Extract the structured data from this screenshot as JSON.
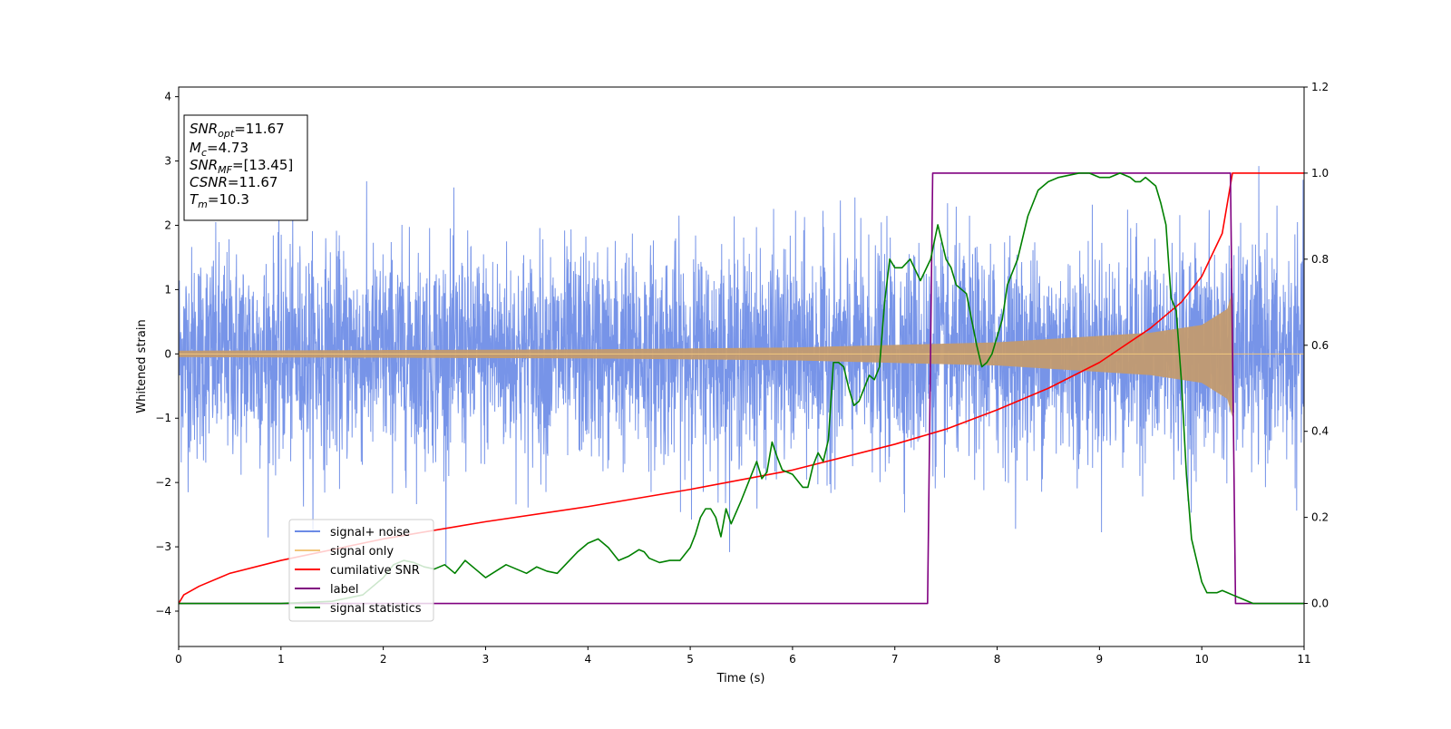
{
  "chart_data": {
    "type": "line",
    "xlabel": "Time (s)",
    "ylabel": "Whitened strain",
    "xlim": [
      0,
      11
    ],
    "ylim": [
      -4.55,
      4.15
    ],
    "y2lim": [
      -0.1,
      1.2
    ],
    "xticks": [
      "0",
      "1",
      "2",
      "3",
      "4",
      "5",
      "6",
      "7",
      "8",
      "9",
      "10",
      "11"
    ],
    "yticks": [
      "−4",
      "−3",
      "−2",
      "−1",
      "0",
      "1",
      "2",
      "3",
      "4"
    ],
    "y2ticks": [
      "0.0",
      "0.2",
      "0.4",
      "0.6",
      "0.8",
      "1.0",
      "1.2"
    ],
    "grid": false,
    "legend_position": "lower-left",
    "annotation": {
      "lines": [
        {
          "sym": "SNR",
          "sub": "opt",
          "val": "=11.67"
        },
        {
          "sym": "M",
          "sub": "c",
          "val": "=4.73"
        },
        {
          "sym": "SNR",
          "sub": "MF",
          "val": "=[13.45]"
        },
        {
          "sym": "CSNR",
          "sub": "",
          "val": "=11.67"
        },
        {
          "sym": "T",
          "sub": "m",
          "val": "=10.3"
        }
      ]
    },
    "series": [
      {
        "name": "signal+ noise",
        "color": "#6b8be6",
        "axis": "left",
        "kind": "noise",
        "description_params": {
          "t_end": 11,
          "core_amp": 1.6,
          "peak_min": 3.3,
          "peak_max": 3.77
        }
      },
      {
        "name": "signal only",
        "color": "#f2c77e",
        "axis": "left",
        "kind": "chirp",
        "amplitude_points": [
          [
            0,
            0.05
          ],
          [
            4,
            0.07
          ],
          [
            6,
            0.1
          ],
          [
            8,
            0.18
          ],
          [
            9.5,
            0.33
          ],
          [
            10.0,
            0.45
          ],
          [
            10.25,
            0.7
          ],
          [
            10.3,
            1.0
          ],
          [
            10.31,
            0.0
          ],
          [
            11,
            0.0
          ]
        ]
      },
      {
        "name": "cumilative SNR",
        "color": "#ff0000",
        "axis": "right",
        "x": [
          0,
          0.05,
          0.2,
          0.5,
          1.0,
          2.0,
          3.0,
          4.0,
          5.0,
          6.0,
          7.0,
          7.5,
          8.0,
          8.5,
          9.0,
          9.5,
          9.8,
          10.0,
          10.2,
          10.3,
          11.0
        ],
        "values": [
          0.0,
          0.02,
          0.04,
          0.07,
          0.1,
          0.15,
          0.19,
          0.225,
          0.265,
          0.31,
          0.37,
          0.405,
          0.45,
          0.5,
          0.56,
          0.64,
          0.7,
          0.76,
          0.86,
          1.0,
          1.0
        ]
      },
      {
        "name": "label",
        "color": "#800080",
        "axis": "right",
        "x": [
          0,
          7.32,
          7.37,
          10.28,
          10.33,
          11.0
        ],
        "values": [
          0.0,
          0.0,
          1.0,
          1.0,
          0.0,
          0.0
        ]
      },
      {
        "name": "signal statistics",
        "color": "#008000",
        "axis": "right",
        "x": [
          0,
          0.5,
          1.0,
          1.5,
          1.8,
          2.0,
          2.1,
          2.2,
          2.3,
          2.4,
          2.5,
          2.6,
          2.7,
          2.8,
          2.9,
          3.0,
          3.1,
          3.2,
          3.3,
          3.4,
          3.5,
          3.6,
          3.7,
          3.8,
          3.9,
          4.0,
          4.1,
          4.15,
          4.2,
          4.3,
          4.4,
          4.5,
          4.55,
          4.6,
          4.7,
          4.8,
          4.9,
          5.0,
          5.05,
          5.1,
          5.15,
          5.2,
          5.25,
          5.3,
          5.35,
          5.4,
          5.5,
          5.6,
          5.65,
          5.7,
          5.75,
          5.8,
          5.85,
          5.9,
          6.0,
          6.1,
          6.15,
          6.2,
          6.25,
          6.3,
          6.35,
          6.4,
          6.45,
          6.5,
          6.55,
          6.6,
          6.65,
          6.7,
          6.75,
          6.8,
          6.85,
          6.9,
          6.95,
          7.0,
          7.07,
          7.15,
          7.25,
          7.35,
          7.42,
          7.5,
          7.55,
          7.6,
          7.7,
          7.8,
          7.85,
          7.9,
          7.95,
          8.0,
          8.05,
          8.1,
          8.2,
          8.3,
          8.4,
          8.5,
          8.6,
          8.7,
          8.8,
          8.9,
          9.0,
          9.1,
          9.2,
          9.3,
          9.35,
          9.4,
          9.45,
          9.5,
          9.55,
          9.6,
          9.65,
          9.7,
          9.75,
          9.8,
          9.85,
          9.9,
          9.95,
          10.0,
          10.05,
          10.1,
          10.15,
          10.2,
          10.25,
          10.3,
          10.4,
          10.5,
          10.6,
          10.7,
          10.8,
          10.9,
          11.0
        ],
        "values": [
          0.0,
          0.0,
          0.0,
          0.005,
          0.02,
          0.06,
          0.09,
          0.1,
          0.095,
          0.085,
          0.08,
          0.09,
          0.07,
          0.1,
          0.08,
          0.06,
          0.075,
          0.09,
          0.08,
          0.07,
          0.085,
          0.075,
          0.07,
          0.095,
          0.12,
          0.14,
          0.15,
          0.14,
          0.13,
          0.1,
          0.11,
          0.125,
          0.12,
          0.105,
          0.095,
          0.1,
          0.1,
          0.13,
          0.16,
          0.2,
          0.22,
          0.22,
          0.2,
          0.155,
          0.22,
          0.185,
          0.24,
          0.3,
          0.33,
          0.29,
          0.305,
          0.375,
          0.34,
          0.31,
          0.3,
          0.27,
          0.27,
          0.32,
          0.35,
          0.33,
          0.38,
          0.56,
          0.56,
          0.55,
          0.5,
          0.46,
          0.47,
          0.5,
          0.53,
          0.52,
          0.55,
          0.7,
          0.8,
          0.78,
          0.78,
          0.8,
          0.75,
          0.8,
          0.88,
          0.8,
          0.78,
          0.74,
          0.72,
          0.6,
          0.55,
          0.56,
          0.58,
          0.62,
          0.66,
          0.74,
          0.8,
          0.9,
          0.96,
          0.98,
          0.99,
          0.995,
          1.0,
          1.0,
          0.99,
          0.99,
          1.0,
          0.99,
          0.98,
          0.98,
          0.99,
          0.98,
          0.97,
          0.93,
          0.88,
          0.71,
          0.68,
          0.52,
          0.3,
          0.15,
          0.1,
          0.05,
          0.025,
          0.025,
          0.025,
          0.03,
          0.025,
          0.02,
          0.01,
          0.0,
          0.0,
          0.0,
          0.0,
          0.0,
          0.0
        ]
      }
    ]
  }
}
